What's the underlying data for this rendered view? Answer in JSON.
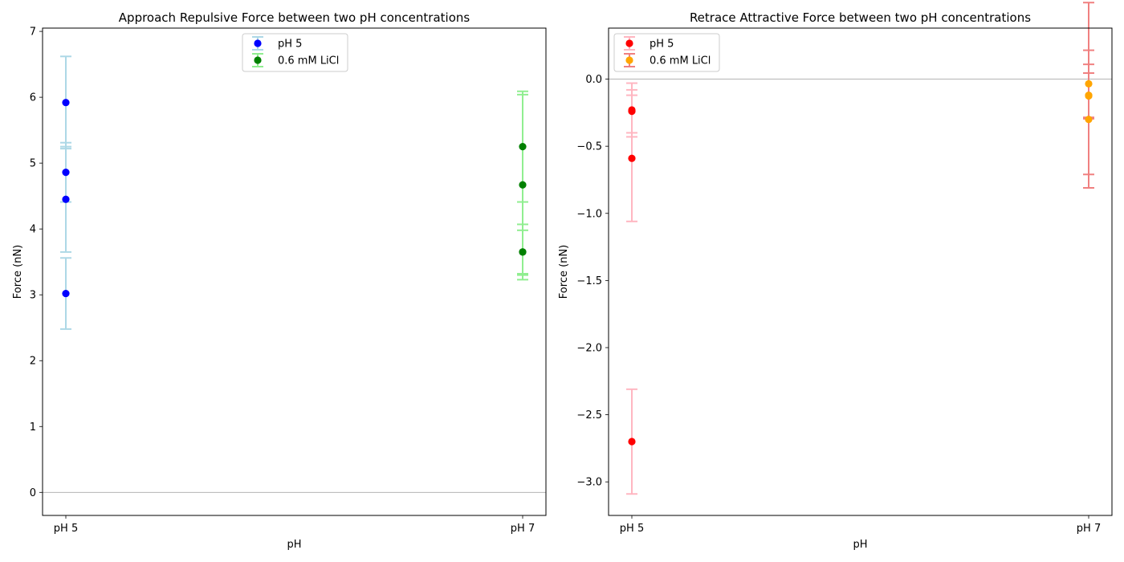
{
  "chart_data": [
    {
      "type": "scatter",
      "title": "Approach Repulsive Force between two pH concentrations",
      "xlabel": "pH",
      "ylabel": "Force (nN)",
      "categories": [
        "pH 5",
        "pH 7"
      ],
      "ylim": [
        -0.35,
        7.05
      ],
      "yticks": [
        0,
        1,
        2,
        3,
        4,
        5,
        6,
        7
      ],
      "zero_line": true,
      "grid": false,
      "legend_position": "top-center",
      "series": [
        {
          "name": "pH 5",
          "x": "pH 5",
          "marker_color": "#0000ff",
          "errorbar_color": "#add8e6",
          "points": [
            {
              "y": 5.92,
              "err": 0.7
            },
            {
              "y": 4.86,
              "err": 0.45
            },
            {
              "y": 4.45,
              "err": 0.8
            },
            {
              "y": 3.02,
              "err": 0.54
            }
          ]
        },
        {
          "name": "0.6 mM LiCl",
          "x": "pH 7",
          "marker_color": "#008000",
          "errorbar_color": "#90ee90",
          "points": [
            {
              "y": 5.25,
              "err": 0.84
            },
            {
              "y": 4.67,
              "err": 1.37
            },
            {
              "y": 3.65,
              "err": 0.33
            },
            {
              "y": 3.65,
              "err": 0.42
            }
          ]
        }
      ]
    },
    {
      "type": "scatter",
      "title": "Retrace Attractive Force between two pH concentrations",
      "xlabel": "pH",
      "ylabel": "Force (nN)",
      "categories": [
        "pH 5",
        "pH 7"
      ],
      "ylim": [
        -3.25,
        0.38
      ],
      "yticks": [
        -3.0,
        -2.5,
        -2.0,
        -1.5,
        -1.0,
        -0.5,
        0.0
      ],
      "ytick_labels": [
        "−3.0",
        "−2.5",
        "−2.0",
        "−1.5",
        "−1.0",
        "−0.5",
        "0.0"
      ],
      "zero_line": true,
      "grid": false,
      "legend_position": "top-left",
      "series": [
        {
          "name": "pH 5",
          "x": "pH 5",
          "marker_color": "#ff0000",
          "errorbar_color": "#ffb6c1",
          "points": [
            {
              "y": -0.23,
              "err": 0.2
            },
            {
              "y": -0.24,
              "err": 0.16
            },
            {
              "y": -0.59,
              "err": 0.47
            },
            {
              "y": -2.7,
              "err": 0.39
            }
          ]
        },
        {
          "name": "0.6 mM LiCl",
          "x": "pH 7",
          "marker_color": "#ffa500",
          "errorbar_color": "#f08080",
          "points": [
            {
              "y": -0.035,
              "err": 0.25
            },
            {
              "y": -0.12,
              "err": 0.69
            },
            {
              "y": -0.125,
              "err": 0.17
            },
            {
              "y": -0.3,
              "err": 0.41
            }
          ]
        }
      ]
    }
  ]
}
